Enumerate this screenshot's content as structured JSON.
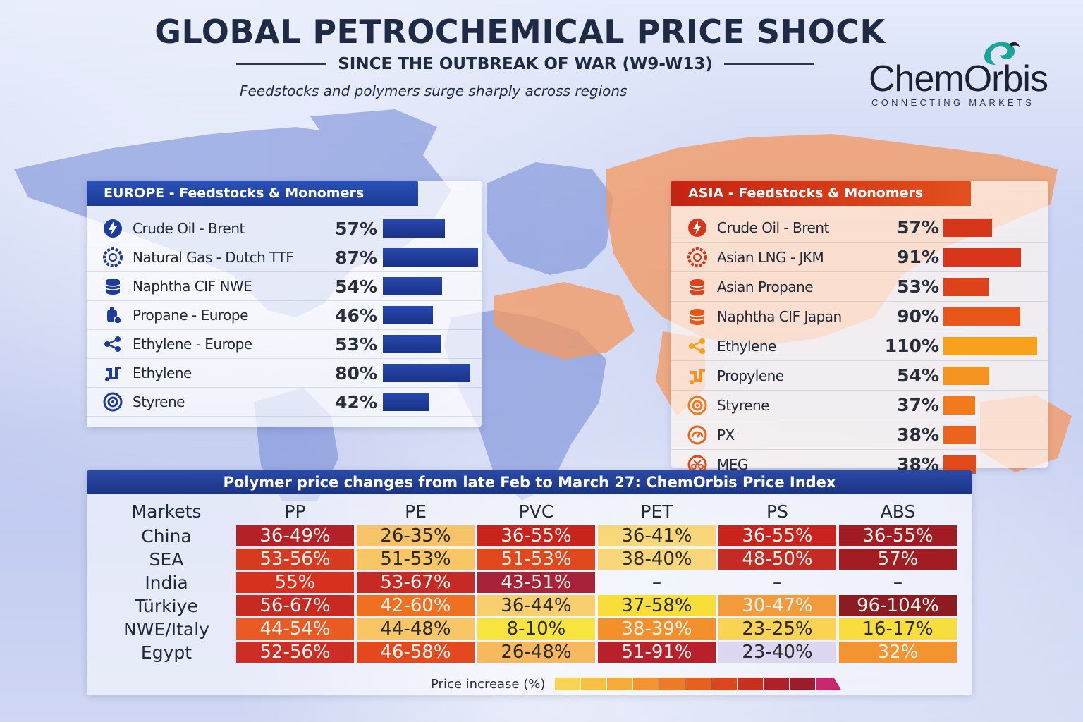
{
  "header": {
    "title": "GLOBAL PETROCHEMICAL PRICE SHOCK",
    "subtitle": "SINCE THE OUTBREAK OF WAR (W9-W13)",
    "tagline": "Feedstocks and polymers surge sharply across regions"
  },
  "logo": {
    "name": "ChemOrbis",
    "tagline": "CONNECTING MARKETS"
  },
  "colors": {
    "europe_blue": "#1f3b9c",
    "asia_red": "#d8361a",
    "asia_orange": "#f07a1c",
    "asia_amber": "#f8a11c"
  },
  "chart_data": [
    {
      "type": "bar",
      "title": "EUROPE - Feedstocks & Monomers",
      "categories": [
        "Crude Oil - Brent",
        "Natural Gas - Dutch TTF",
        "Naphtha CIF NWE",
        "Propane - Europe",
        "Ethylene - Europe",
        "Ethylene",
        "Styrene"
      ],
      "values": [
        57,
        87,
        54,
        46,
        53,
        80,
        42
      ],
      "labels": [
        "57%",
        "87%",
        "54%",
        "46%",
        "53%",
        "80%",
        "42%"
      ],
      "icons": [
        "lightning-icon",
        "gas-ring-icon",
        "barrels-icon",
        "propane-tank-icon",
        "molecule-icon",
        "pipes-icon",
        "target-icon"
      ]
    },
    {
      "type": "bar",
      "title": "ASIA - Feedstocks & Monomers",
      "categories": [
        "Crude Oil - Brent",
        "Asian LNG - JKM",
        "Asian Propane",
        "Naphtha CIF Japan",
        "Ethylene",
        "Propylene",
        "Styrene",
        "PX",
        "MEG"
      ],
      "values": [
        57,
        91,
        53,
        90,
        110,
        54,
        37,
        38,
        38
      ],
      "labels": [
        "57%",
        "91%",
        "53%",
        "90%",
        "110%",
        "54%",
        "37%",
        "38%",
        "38%"
      ],
      "icons": [
        "lightning-icon",
        "gas-ring-icon",
        "barrels-icon",
        "barrels-icon",
        "molecule-icon",
        "pipes-icon",
        "target-icon",
        "gauge-icon",
        "scissors-icon"
      ],
      "bar_colors": [
        "#d8361a",
        "#d8361a",
        "#dd421a",
        "#e8561a",
        "#f8a11c",
        "#f59420",
        "#f07a1c",
        "#ec631b",
        "#e24a1a"
      ]
    },
    {
      "type": "table",
      "title": "Polymer price changes from late Feb to March 27: ChemOrbis Price Index",
      "columns": [
        "Markets",
        "PP",
        "PE",
        "PVC",
        "PET",
        "PS",
        "ABS"
      ],
      "rows": [
        {
          "market": "China",
          "cells": [
            "36-49%",
            "26-35%",
            "36-55%",
            "36-41%",
            "36-55%",
            "36-55%"
          ],
          "colors": [
            "#b42126",
            "#f7c368",
            "#c8231c",
            "#f8d77a",
            "#c8231c",
            "#a21c24"
          ]
        },
        {
          "market": "SEA",
          "cells": [
            "53-56%",
            "51-53%",
            "51-53%",
            "38-40%",
            "48-50%",
            "57%"
          ],
          "colors": [
            "#d83a20",
            "#f8c664",
            "#e2481e",
            "#f8d77a",
            "#c52a24",
            "#a21c24"
          ]
        },
        {
          "market": "India",
          "cells": [
            "55%",
            "53-67%",
            "43-51%",
            "–",
            "–",
            "–"
          ],
          "colors": [
            "#d8301e",
            "#c52a24",
            "#a8233a",
            "",
            "",
            ""
          ]
        },
        {
          "market": "Türkiye",
          "cells": [
            "56-67%",
            "42-60%",
            "36-44%",
            "37-58%",
            "30-47%",
            "96-104%"
          ],
          "colors": [
            "#c82a22",
            "#ee7020",
            "#f8cf6e",
            "#f8de38",
            "#f39a3c",
            "#8c1c22"
          ]
        },
        {
          "market": "NWE/Italy",
          "cells": [
            "44-54%",
            "44-48%",
            "8-10%",
            "38-39%",
            "23-25%",
            "16-17%"
          ],
          "colors": [
            "#ec5a24",
            "#f8c664",
            "#f8e43e",
            "#f4902a",
            "#f8d452",
            "#f8de3c"
          ]
        },
        {
          "market": "Egypt",
          "cells": [
            "52-56%",
            "46-58%",
            "26-48%",
            "51-91%",
            "23-40%",
            "32%"
          ],
          "colors": [
            "#cc2e26",
            "#e4481e",
            "#f8b85e",
            "#b8202c",
            "#dcd6f0",
            "#f49430"
          ]
        }
      ]
    }
  ],
  "legend": {
    "label": "Price increase (%)",
    "colors": [
      "#f8d452",
      "#f8c040",
      "#f6ac38",
      "#f49430",
      "#ee7a26",
      "#e8601e",
      "#dc461c",
      "#c8301e",
      "#b02028",
      "#9c1c2a",
      "#c8266e"
    ]
  }
}
